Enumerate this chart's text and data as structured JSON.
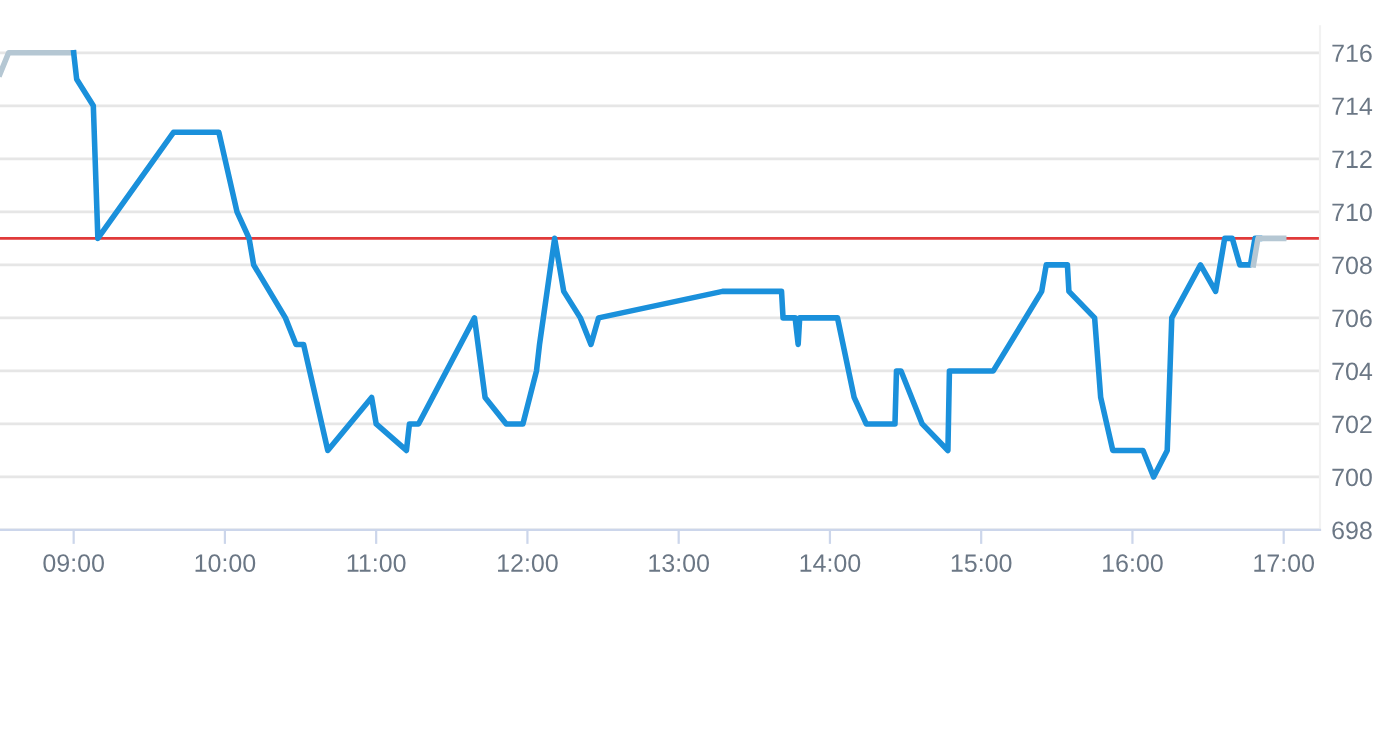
{
  "chart_data": {
    "type": "line",
    "xlim": [
      8.513,
      17.24
    ],
    "xticks": [
      {
        "value": 9,
        "label": "09:00"
      },
      {
        "value": 10,
        "label": "10:00"
      },
      {
        "value": 11,
        "label": "11:00"
      },
      {
        "value": 12,
        "label": "12:00"
      },
      {
        "value": 13,
        "label": "13:00"
      },
      {
        "value": 14,
        "label": "14:00"
      },
      {
        "value": 15,
        "label": "15:00"
      },
      {
        "value": 16,
        "label": "16:00"
      },
      {
        "value": 17,
        "label": "17:00"
      }
    ],
    "ylim": [
      698,
      717
    ],
    "yticks": [
      698,
      700,
      702,
      704,
      706,
      708,
      710,
      712,
      714,
      716
    ],
    "grid": "y",
    "marker": "none",
    "line_style": "solid",
    "ref_lines": [
      {
        "axis": "y",
        "value": 709,
        "color": "#e03a3a"
      }
    ],
    "series": [
      {
        "color": "#b5c7d3",
        "x": [
          8.513,
          8.57,
          9.0
        ],
        "values": [
          715.2,
          716,
          716
        ]
      },
      {
        "color": "#1a90db",
        "x": [
          9.0,
          9.02,
          9.13,
          9.16,
          9.66,
          9.96,
          10.08,
          10.16,
          10.19,
          10.4,
          10.47,
          10.52,
          10.68,
          10.97,
          11.0,
          11.2,
          11.22,
          11.28,
          11.65,
          11.72,
          11.86,
          11.97,
          12.06,
          12.08,
          12.18,
          12.24,
          12.35,
          12.42,
          12.47,
          13.29,
          13.68,
          13.69,
          13.77,
          13.79,
          13.8,
          14.05,
          14.16,
          14.24,
          14.43,
          14.44,
          14.47,
          14.61,
          14.78,
          14.79,
          15.08,
          15.4,
          15.43,
          15.57,
          15.58,
          15.75,
          15.79,
          15.87,
          16.07,
          16.14,
          16.23,
          16.26,
          16.45,
          16.55,
          16.61,
          16.66,
          16.71,
          16.78,
          16.81,
          16.84
        ],
        "values": [
          716,
          715,
          714,
          709,
          713,
          713,
          710,
          709,
          708,
          706,
          705,
          705,
          701,
          703,
          702,
          701,
          702,
          702,
          706,
          703,
          702,
          702,
          704,
          705,
          709,
          707,
          706,
          705,
          706,
          707,
          707,
          706,
          706,
          705,
          706,
          706,
          703,
          702,
          702,
          704,
          704,
          702,
          701,
          704,
          704,
          707,
          708,
          708,
          707,
          706,
          703,
          701,
          701,
          700,
          701,
          706,
          708,
          707,
          709,
          709,
          708,
          708,
          709,
          709
        ]
      },
      {
        "color": "#b5c7d3",
        "x": [
          16.8,
          16.83,
          17.0
        ],
        "values": [
          708,
          709,
          709
        ]
      }
    ]
  }
}
